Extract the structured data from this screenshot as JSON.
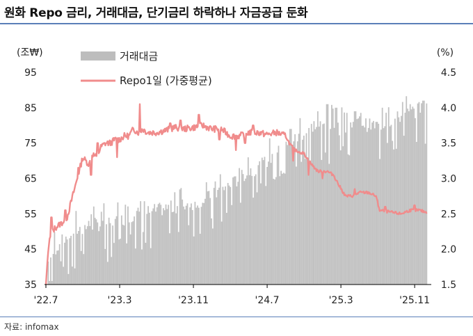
{
  "title": "원화 Repo 금리, 거래대금, 단기금리 하락하나 자금공급 둔화",
  "source": "자료: infomax",
  "chart_data": {
    "type": "bar+line",
    "left_axis": {
      "unit_label": "(조₩)",
      "ticks": [
        35,
        45,
        55,
        65,
        75,
        85,
        95
      ],
      "range": [
        35,
        95
      ]
    },
    "right_axis": {
      "unit_label": "(%)",
      "ticks": [
        "1.5",
        "2.0",
        "2.5",
        "3.0",
        "3.5",
        "4.0",
        "4.5"
      ],
      "range": [
        1.5,
        4.5
      ]
    },
    "x_ticks": [
      "'22.7",
      "'23.3",
      "'23.11",
      "'24.7",
      "'25.3",
      "'25.11"
    ],
    "x_tick_months": [
      0,
      8,
      16,
      24,
      32,
      40
    ],
    "x_range_months": [
      0,
      41.5
    ],
    "legend": [
      {
        "label": "거래대금",
        "color": "#bdbdbd"
      },
      {
        "label": "Repo1일 (가중평균)",
        "color": "#f08c8c"
      }
    ],
    "series": [
      {
        "name": "거래대금",
        "axis": "left",
        "anchors": [
          [
            0,
            40
          ],
          [
            1,
            45
          ],
          [
            2,
            48
          ],
          [
            3,
            50
          ],
          [
            4,
            51
          ],
          [
            5,
            52
          ],
          [
            6,
            52
          ],
          [
            8,
            53
          ],
          [
            9,
            54
          ],
          [
            10,
            55
          ],
          [
            12,
            56
          ],
          [
            14,
            57
          ],
          [
            16,
            58
          ],
          [
            18,
            60
          ],
          [
            19,
            62
          ],
          [
            20,
            63
          ],
          [
            21,
            65
          ],
          [
            22,
            67
          ],
          [
            23,
            68
          ],
          [
            24,
            70
          ],
          [
            25,
            72
          ],
          [
            26,
            74
          ],
          [
            27,
            76
          ],
          [
            28,
            78
          ],
          [
            29,
            80
          ],
          [
            30,
            80
          ],
          [
            31,
            80
          ],
          [
            32,
            79
          ],
          [
            33,
            80
          ],
          [
            34,
            81
          ],
          [
            35,
            80
          ],
          [
            36,
            80
          ],
          [
            37,
            81
          ],
          [
            38,
            82
          ],
          [
            39,
            83
          ],
          [
            40,
            84
          ],
          [
            41.3,
            85
          ]
        ],
        "peaks": [
          [
            26.5,
            79
          ],
          [
            29.5,
            84
          ],
          [
            30.5,
            86
          ],
          [
            31.5,
            85
          ],
          [
            33.5,
            84
          ],
          [
            36.5,
            85
          ],
          [
            39.5,
            86
          ],
          [
            41,
            87
          ]
        ]
      },
      {
        "name": "Repo1일 (가중평균)",
        "axis": "right",
        "anchors": [
          [
            0,
            1.5
          ],
          [
            0.2,
            1.9
          ],
          [
            0.4,
            2.15
          ],
          [
            0.7,
            2.25
          ],
          [
            1.0,
            2.3
          ],
          [
            1.5,
            2.35
          ],
          [
            2.0,
            2.4
          ],
          [
            2.3,
            2.45
          ],
          [
            2.6,
            2.6
          ],
          [
            3.0,
            2.8
          ],
          [
            3.4,
            3.0
          ],
          [
            3.7,
            3.15
          ],
          [
            4.0,
            3.3
          ],
          [
            4.3,
            3.25
          ],
          [
            4.7,
            3.2
          ],
          [
            5.0,
            3.35
          ],
          [
            5.5,
            3.3
          ],
          [
            6.0,
            3.45
          ],
          [
            6.5,
            3.5
          ],
          [
            7.0,
            3.5
          ],
          [
            7.5,
            3.55
          ],
          [
            8.0,
            3.55
          ],
          [
            8.5,
            3.6
          ],
          [
            9.0,
            3.6
          ],
          [
            9.5,
            3.7
          ],
          [
            10.0,
            3.65
          ],
          [
            10.5,
            3.7
          ],
          [
            11.0,
            3.65
          ],
          [
            12.0,
            3.65
          ],
          [
            13.0,
            3.68
          ],
          [
            14.0,
            3.72
          ],
          [
            15.0,
            3.7
          ],
          [
            16.0,
            3.72
          ],
          [
            17.0,
            3.75
          ],
          [
            18.0,
            3.7
          ],
          [
            19.0,
            3.7
          ],
          [
            20.0,
            3.6
          ],
          [
            21.0,
            3.6
          ],
          [
            22.0,
            3.65
          ],
          [
            23.0,
            3.65
          ],
          [
            24.0,
            3.62
          ],
          [
            25.0,
            3.65
          ],
          [
            26.0,
            3.6
          ],
          [
            26.4,
            3.5
          ],
          [
            27.0,
            3.4
          ],
          [
            28.0,
            3.35
          ],
          [
            28.8,
            3.2
          ],
          [
            29.5,
            3.1
          ],
          [
            30.5,
            3.1
          ],
          [
            31.2,
            3.05
          ],
          [
            31.8,
            2.9
          ],
          [
            32.5,
            2.75
          ],
          [
            33.2,
            2.75
          ],
          [
            34.0,
            2.8
          ],
          [
            35.0,
            2.8
          ],
          [
            35.8,
            2.75
          ],
          [
            36.2,
            2.55
          ],
          [
            37.5,
            2.52
          ],
          [
            38.5,
            2.5
          ],
          [
            39.5,
            2.55
          ],
          [
            40.5,
            2.55
          ],
          [
            41.3,
            2.52
          ]
        ],
        "spikes": [
          [
            0.6,
            2.45
          ],
          [
            2.1,
            2.55
          ],
          [
            3.5,
            3.15
          ],
          [
            4.9,
            3.05
          ],
          [
            5.6,
            3.5
          ],
          [
            7.7,
            3.3
          ],
          [
            10.2,
            4.05
          ],
          [
            13.5,
            3.78
          ],
          [
            14.6,
            3.82
          ],
          [
            16.6,
            3.9
          ],
          [
            18.8,
            3.55
          ],
          [
            20.6,
            3.4
          ],
          [
            21.6,
            3.5
          ],
          [
            22.5,
            3.75
          ],
          [
            26.8,
            3.25
          ],
          [
            28.5,
            3.05
          ],
          [
            30.0,
            3.0
          ],
          [
            33.5,
            2.85
          ],
          [
            36.8,
            2.6
          ],
          [
            40.0,
            2.62
          ]
        ]
      }
    ]
  }
}
